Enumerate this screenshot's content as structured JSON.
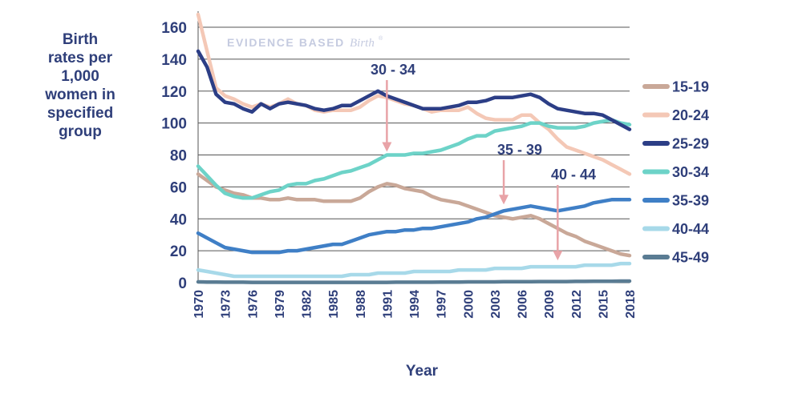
{
  "chart_data": {
    "type": "line",
    "ylabel_lines": [
      "Birth",
      "rates per",
      "1,000",
      "women in",
      "specified",
      "group"
    ],
    "xlabel": "Year",
    "watermark": {
      "text": "EVIDENCE BASED",
      "script": "Birth",
      "mark": "®"
    },
    "ylim": [
      0,
      160
    ],
    "yticks": [
      0,
      20,
      40,
      60,
      80,
      100,
      120,
      140,
      160
    ],
    "xlim": [
      1970,
      2018
    ],
    "xticks": [
      1970,
      1973,
      1976,
      1979,
      1982,
      1985,
      1988,
      1991,
      1994,
      1997,
      2000,
      2003,
      2006,
      2009,
      2012,
      2015,
      2018
    ],
    "x": [
      1970,
      1971,
      1972,
      1973,
      1974,
      1975,
      1976,
      1977,
      1978,
      1979,
      1980,
      1981,
      1982,
      1983,
      1984,
      1985,
      1986,
      1987,
      1988,
      1989,
      1990,
      1991,
      1992,
      1993,
      1994,
      1995,
      1996,
      1997,
      1998,
      1999,
      2000,
      2001,
      2002,
      2003,
      2004,
      2005,
      2006,
      2007,
      2008,
      2009,
      2010,
      2011,
      2012,
      2013,
      2014,
      2015,
      2016,
      2017,
      2018
    ],
    "series": [
      {
        "name": "15-19",
        "color": "#c9a898",
        "values": [
          68,
          64,
          60,
          58,
          56,
          55,
          53,
          53,
          52,
          52,
          53,
          52,
          52,
          52,
          51,
          51,
          51,
          51,
          53,
          57,
          60,
          62,
          61,
          59,
          58,
          57,
          54,
          52,
          51,
          50,
          48,
          46,
          44,
          42,
          41,
          40,
          41,
          42,
          40,
          37,
          34,
          31,
          29,
          26,
          24,
          22,
          20,
          18,
          17
        ]
      },
      {
        "name": "20-24",
        "color": "#f4c8b6",
        "values": [
          168,
          145,
          122,
          117,
          115,
          112,
          110,
          112,
          110,
          112,
          115,
          112,
          111,
          108,
          107,
          108,
          108,
          108,
          110,
          114,
          117,
          116,
          114,
          112,
          111,
          109,
          107,
          108,
          108,
          108,
          110,
          106,
          103,
          102,
          102,
          102,
          105,
          105,
          100,
          96,
          90,
          85,
          83,
          81,
          79,
          77,
          74,
          71,
          68
        ]
      },
      {
        "name": "25-29",
        "color": "#2c3e86",
        "values": [
          145,
          135,
          118,
          113,
          112,
          109,
          107,
          112,
          109,
          112,
          113,
          112,
          111,
          109,
          108,
          109,
          111,
          111,
          114,
          117,
          120,
          117,
          115,
          113,
          111,
          109,
          109,
          109,
          110,
          111,
          113,
          113,
          114,
          116,
          116,
          116,
          117,
          118,
          116,
          112,
          109,
          108,
          107,
          106,
          106,
          105,
          102,
          99,
          96
        ]
      },
      {
        "name": "30-34",
        "color": "#6dd3c8",
        "values": [
          73,
          67,
          61,
          56,
          54,
          53,
          53,
          55,
          57,
          58,
          61,
          62,
          62,
          64,
          65,
          67,
          69,
          70,
          72,
          74,
          77,
          80,
          80,
          80,
          81,
          81,
          82,
          83,
          85,
          87,
          90,
          92,
          92,
          95,
          96,
          97,
          98,
          100,
          100,
          98,
          97,
          97,
          97,
          98,
          100,
          101,
          102,
          100,
          99
        ]
      },
      {
        "name": "35-39",
        "color": "#3f7fc6",
        "values": [
          31,
          28,
          25,
          22,
          21,
          20,
          19,
          19,
          19,
          19,
          20,
          20,
          21,
          22,
          23,
          24,
          24,
          26,
          28,
          30,
          31,
          32,
          32,
          33,
          33,
          34,
          34,
          35,
          36,
          37,
          38,
          40,
          41,
          43,
          45,
          46,
          47,
          48,
          47,
          46,
          45,
          46,
          47,
          48,
          50,
          51,
          52,
          52,
          52
        ]
      },
      {
        "name": "40-44",
        "color": "#a7d9e9",
        "values": [
          8,
          7,
          6,
          5,
          4,
          4,
          4,
          4,
          4,
          4,
          4,
          4,
          4,
          4,
          4,
          4,
          4,
          5,
          5,
          5,
          6,
          6,
          6,
          6,
          7,
          7,
          7,
          7,
          7,
          8,
          8,
          8,
          8,
          9,
          9,
          9,
          9,
          10,
          10,
          10,
          10,
          10,
          10,
          11,
          11,
          11,
          11,
          12,
          12
        ]
      },
      {
        "name": "45-49",
        "color": "#5a7c93",
        "values": [
          0.5,
          0.4,
          0.4,
          0.3,
          0.3,
          0.3,
          0.2,
          0.2,
          0.2,
          0.2,
          0.2,
          0.2,
          0.2,
          0.2,
          0.2,
          0.2,
          0.2,
          0.2,
          0.2,
          0.2,
          0.2,
          0.2,
          0.3,
          0.3,
          0.3,
          0.3,
          0.3,
          0.4,
          0.4,
          0.4,
          0.5,
          0.5,
          0.5,
          0.5,
          0.6,
          0.6,
          0.6,
          0.6,
          0.7,
          0.7,
          0.7,
          0.7,
          0.8,
          0.8,
          0.9,
          0.9,
          0.9,
          1.0,
          1.0
        ]
      }
    ],
    "annotations": [
      {
        "text": "30 - 34",
        "arrow_x": 1991,
        "arrow_to": 82
      },
      {
        "text": "35 - 39",
        "arrow_x": 2004,
        "arrow_to": 49
      },
      {
        "text": "40 - 44",
        "arrow_x": 2010,
        "arrow_to": 14
      }
    ],
    "legend_position": "right",
    "grid": "horizontal",
    "colors": {
      "axis_text": "#2f3f7a",
      "grid": "#555555",
      "arrow": "#e8a3a7"
    }
  }
}
